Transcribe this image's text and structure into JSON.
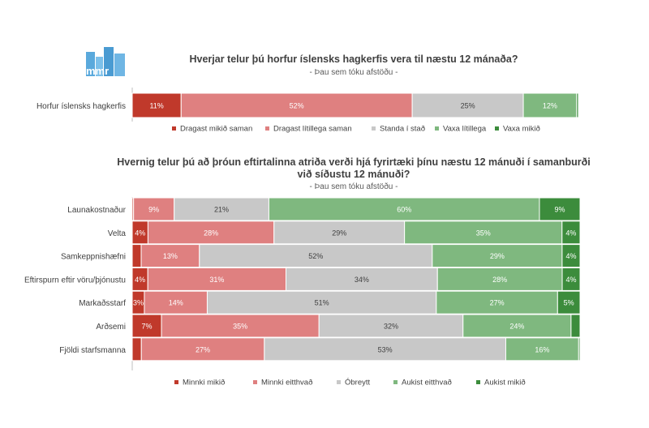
{
  "logo_text": "mmr",
  "colors": {
    "strong_neg": "#c0392b",
    "mild_neg": "#df8080",
    "neutral": "#c8c8c8",
    "mild_pos": "#7fb87f",
    "strong_pos": "#3c8c3c",
    "logo_blue": "#5aa9dc"
  },
  "chart_data": [
    {
      "type": "bar",
      "orientation": "horizontal",
      "stacked": true,
      "title": "Hverjar telur þú horfur íslensks hagkerfis vera til næstu 12 mánaða?",
      "subtitle": "- Þau sem tóku afstöðu -",
      "categories": [
        "Horfur íslensks hagkerfis"
      ],
      "series": [
        {
          "name": "Dragast mikið saman",
          "values": [
            11
          ]
        },
        {
          "name": "Dragast lítillega saman",
          "values": [
            52
          ]
        },
        {
          "name": "Standa í stað",
          "values": [
            25
          ]
        },
        {
          "name": "Vaxa lítillega",
          "values": [
            12
          ]
        },
        {
          "name": "Vaxa mikið",
          "values": [
            0.4
          ]
        }
      ],
      "data_labels": [
        [
          "11%",
          "52%",
          "25%",
          "12%",
          ""
        ]
      ],
      "xlim": [
        0,
        100
      ],
      "legend": "bottom"
    },
    {
      "type": "bar",
      "orientation": "horizontal",
      "stacked": true,
      "title": "Hvernig telur þú að þróun eftirtalinna atriða verði hjá fyrirtæki þínu næstu 12 mánuði í samanburði við síðustu 12 mánuði?",
      "title_lines": [
        "Hvernig telur þú að þróun eftirtalinna atriða verði hjá fyrirtæki þínu næstu 12 mánuði í samanburði",
        "við síðustu 12 mánuði?"
      ],
      "subtitle": "- Þau sem tóku afstöðu -",
      "categories": [
        "Launakostnaður",
        "Velta",
        "Samkeppnishæfni",
        "Eftirspurn eftir vöru/þjónustu",
        "Markaðsstarf",
        "Arðsemi",
        "Fjöldi starfsmanna"
      ],
      "series": [
        {
          "name": "Minnki  mikið",
          "values": [
            0.3,
            3.5,
            2,
            3.5,
            2.7,
            6.5,
            2
          ]
        },
        {
          "name": "Minnki  eitthvað",
          "values": [
            9,
            28,
            13,
            31,
            14,
            35,
            27
          ]
        },
        {
          "name": "Óbreytt",
          "values": [
            21,
            29,
            52,
            34,
            51,
            32,
            53
          ]
        },
        {
          "name": "Aukist  eitthvað",
          "values": [
            60,
            35,
            29,
            28,
            27,
            24,
            16
          ]
        },
        {
          "name": "Aukist  mikið",
          "values": [
            9,
            4,
            4,
            4,
            5,
            2,
            0.3
          ]
        }
      ],
      "data_labels": [
        [
          "",
          "9%",
          "21%",
          "60%",
          "9%"
        ],
        [
          "4%",
          "28%",
          "29%",
          "35%",
          "4%"
        ],
        [
          "",
          "13%",
          "52%",
          "29%",
          "4%"
        ],
        [
          "4%",
          "31%",
          "34%",
          "28%",
          "4%"
        ],
        [
          "3%",
          "14%",
          "51%",
          "27%",
          "5%"
        ],
        [
          "7%",
          "35%",
          "32%",
          "24%",
          ""
        ],
        [
          "",
          "27%",
          "53%",
          "16%",
          ""
        ]
      ],
      "xlim": [
        0,
        100
      ],
      "legend": "bottom"
    }
  ]
}
